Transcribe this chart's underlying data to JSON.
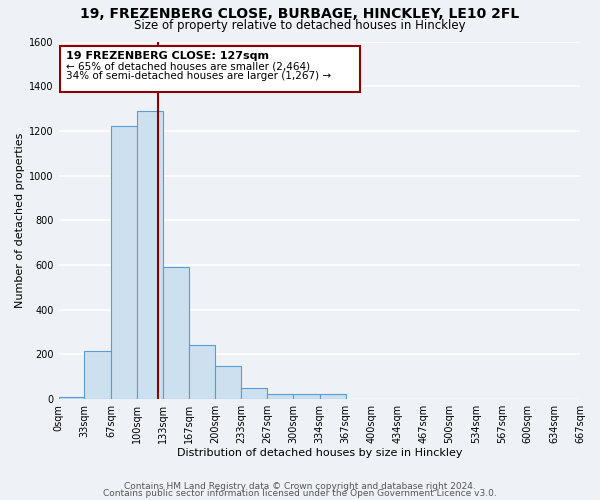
{
  "title": "19, FREZENBERG CLOSE, BURBAGE, HINCKLEY, LE10 2FL",
  "subtitle": "Size of property relative to detached houses in Hinckley",
  "xlabel": "Distribution of detached houses by size in Hinckley",
  "ylabel": "Number of detached properties",
  "bin_edges": [
    0,
    33,
    67,
    100,
    133,
    167,
    200,
    233,
    267,
    300,
    334,
    367,
    400,
    434,
    467,
    500,
    534,
    567,
    600,
    634,
    667
  ],
  "bin_heights": [
    10,
    215,
    1220,
    1290,
    590,
    240,
    150,
    50,
    25,
    25,
    25,
    0,
    0,
    0,
    0,
    0,
    0,
    0,
    0,
    0
  ],
  "bar_color": "#cce0f0",
  "bar_edge_color": "#5b9bd5",
  "vline_color": "#8b0000",
  "vline_x": 127,
  "annotation_title": "19 FREZENBERG CLOSE: 127sqm",
  "annotation_line1": "← 65% of detached houses are smaller (2,464)",
  "annotation_line2": "34% of semi-detached houses are larger (1,267) →",
  "annotation_box_facecolor": "#ffffff",
  "annotation_box_edgecolor": "#8b0000",
  "xlim": [
    0,
    667
  ],
  "ylim": [
    0,
    1600
  ],
  "yticks": [
    0,
    200,
    400,
    600,
    800,
    1000,
    1200,
    1400,
    1600
  ],
  "xtick_labels": [
    "0sqm",
    "33sqm",
    "67sqm",
    "100sqm",
    "133sqm",
    "167sqm",
    "200sqm",
    "233sqm",
    "267sqm",
    "300sqm",
    "334sqm",
    "367sqm",
    "400sqm",
    "434sqm",
    "467sqm",
    "500sqm",
    "534sqm",
    "567sqm",
    "600sqm",
    "634sqm",
    "667sqm"
  ],
  "xtick_positions": [
    0,
    33,
    67,
    100,
    133,
    167,
    200,
    233,
    267,
    300,
    334,
    367,
    400,
    434,
    467,
    500,
    534,
    567,
    600,
    634,
    667
  ],
  "footnote1": "Contains HM Land Registry data © Crown copyright and database right 2024.",
  "footnote2": "Contains public sector information licensed under the Open Government Licence v3.0.",
  "background_color": "#eef2f7",
  "grid_color": "#ffffff",
  "title_fontsize": 10,
  "subtitle_fontsize": 8.5,
  "axis_label_fontsize": 8,
  "tick_fontsize": 7,
  "footnote_fontsize": 6.5,
  "annotation_title_fontsize": 8,
  "annotation_body_fontsize": 7.5
}
